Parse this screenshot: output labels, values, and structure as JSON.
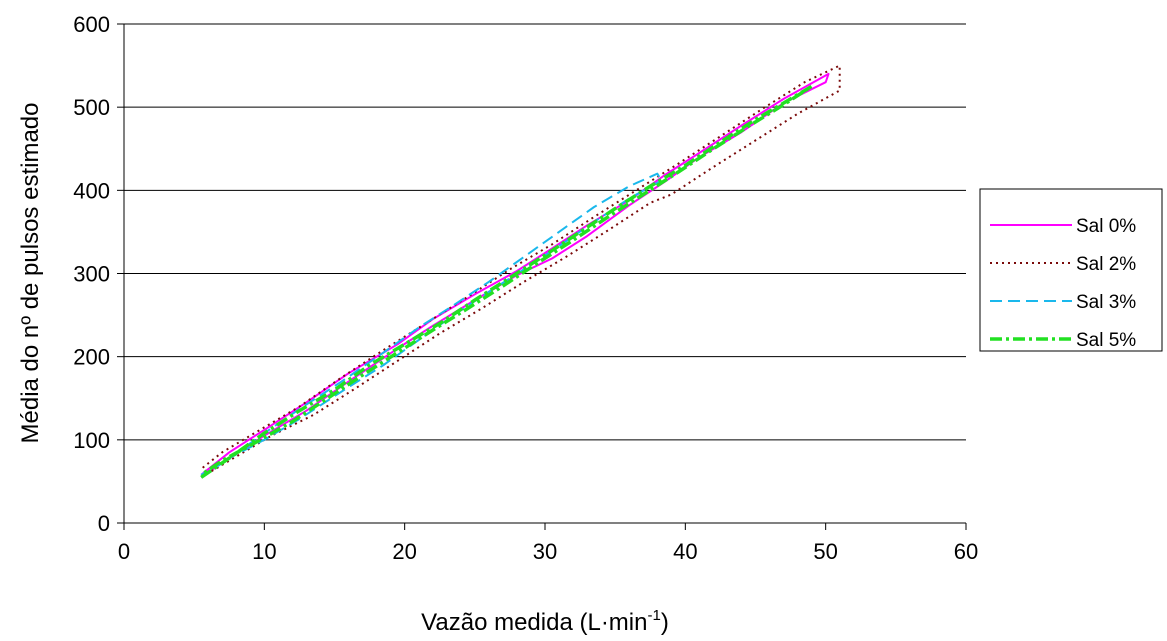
{
  "chart_data": {
    "type": "line",
    "xlabel": "Vazão medida (L·min",
    "xlabel_sup": "-1",
    "xlabel_end": ")",
    "ylabel": "Média do nº de pulsos estimado",
    "xlim": [
      0,
      60
    ],
    "ylim": [
      0,
      600
    ],
    "x_ticks": [
      "0",
      "10",
      "20",
      "30",
      "40",
      "50",
      "60"
    ],
    "y_ticks": [
      "0",
      "100",
      "200",
      "300",
      "400",
      "500",
      "600"
    ],
    "grid": "horizontal",
    "legend_position": "right",
    "series": [
      {
        "name": "Sal 0%",
        "color": "#ff00ff",
        "dash": "solid",
        "x": [
          5.5,
          7.5,
          10.0,
          13.0,
          16.0,
          19.5,
          22.0,
          25.0,
          28.0,
          30.5,
          33.0,
          36.0,
          38.5,
          41.0,
          44.0,
          47.0,
          50.0,
          50.2,
          47.0,
          44.0,
          41.0,
          38.5,
          36.0,
          33.0,
          30.5,
          28.0,
          25.0,
          22.0,
          19.5,
          16.0,
          13.0,
          10.0,
          7.5,
          5.5
        ],
        "y": [
          55,
          78,
          105,
          135,
          170,
          210,
          237,
          268,
          298,
          318,
          345,
          382,
          410,
          440,
          470,
          505,
          530,
          540,
          510,
          478,
          445,
          418,
          388,
          358,
          330,
          303,
          275,
          245,
          215,
          180,
          145,
          112,
          85,
          58
        ]
      },
      {
        "name": "Sal 2%",
        "color": "#7a0a0a",
        "dash": "dotted",
        "x": [
          5.5,
          8.0,
          10.5,
          13.5,
          16.5,
          19.5,
          22.5,
          25.5,
          28.5,
          31.5,
          34.5,
          37.5,
          39.0,
          42.0,
          45.0,
          48.0,
          51.0,
          51.0,
          48.5,
          45.5,
          42.5,
          39.5,
          36.5,
          33.5,
          30.5,
          27.5,
          24.5,
          21.5,
          18.5,
          15.5,
          12.5,
          9.5,
          7.0,
          5.5
        ],
        "y": [
          55,
          80,
          105,
          130,
          162,
          195,
          228,
          258,
          290,
          320,
          352,
          385,
          395,
          428,
          460,
          492,
          520,
          550,
          530,
          498,
          465,
          432,
          400,
          368,
          335,
          305,
          272,
          240,
          208,
          175,
          140,
          110,
          85,
          65
        ]
      },
      {
        "name": "Sal 3%",
        "color": "#1ab8ec",
        "dash": "dashed",
        "x": [
          5.5,
          7.5,
          10.0,
          12.5,
          15.5,
          18.5,
          21.0,
          23.5,
          26.0,
          28.5,
          31.0,
          33.5,
          36.0,
          38.0,
          38.3,
          36.0,
          33.5,
          31.0,
          28.5,
          26.0,
          23.5,
          21.0,
          18.5,
          15.5,
          12.5,
          10.0,
          7.5,
          5.5
        ],
        "y": [
          55,
          78,
          108,
          137,
          170,
          205,
          235,
          262,
          290,
          320,
          350,
          380,
          405,
          420,
          412,
          390,
          362,
          333,
          305,
          278,
          250,
          220,
          190,
          158,
          125,
          100,
          78,
          58
        ]
      },
      {
        "name": "Sal 5%",
        "color": "#22e022",
        "dash": "dashdot",
        "x": [
          5.5,
          7.5,
          10.0,
          12.5,
          15.0,
          17.5,
          20.0,
          22.5,
          25.0,
          27.5,
          30.0,
          32.5,
          35.0,
          37.5,
          40.0,
          42.5,
          45.0,
          47.5,
          49.0,
          47.0,
          44.5,
          42.0,
          39.5,
          37.0,
          34.5,
          32.0,
          29.5,
          27.0,
          24.5,
          22.0,
          19.5,
          17.0,
          14.5,
          12.0,
          9.5,
          7.0,
          5.5
        ],
        "y": [
          55,
          78,
          108,
          135,
          160,
          190,
          215,
          240,
          268,
          295,
          322,
          350,
          378,
          405,
          430,
          458,
          485,
          510,
          525,
          503,
          477,
          450,
          422,
          395,
          368,
          340,
          313,
          285,
          258,
          232,
          205,
          178,
          150,
          122,
          98,
          75,
          58
        ]
      }
    ]
  }
}
